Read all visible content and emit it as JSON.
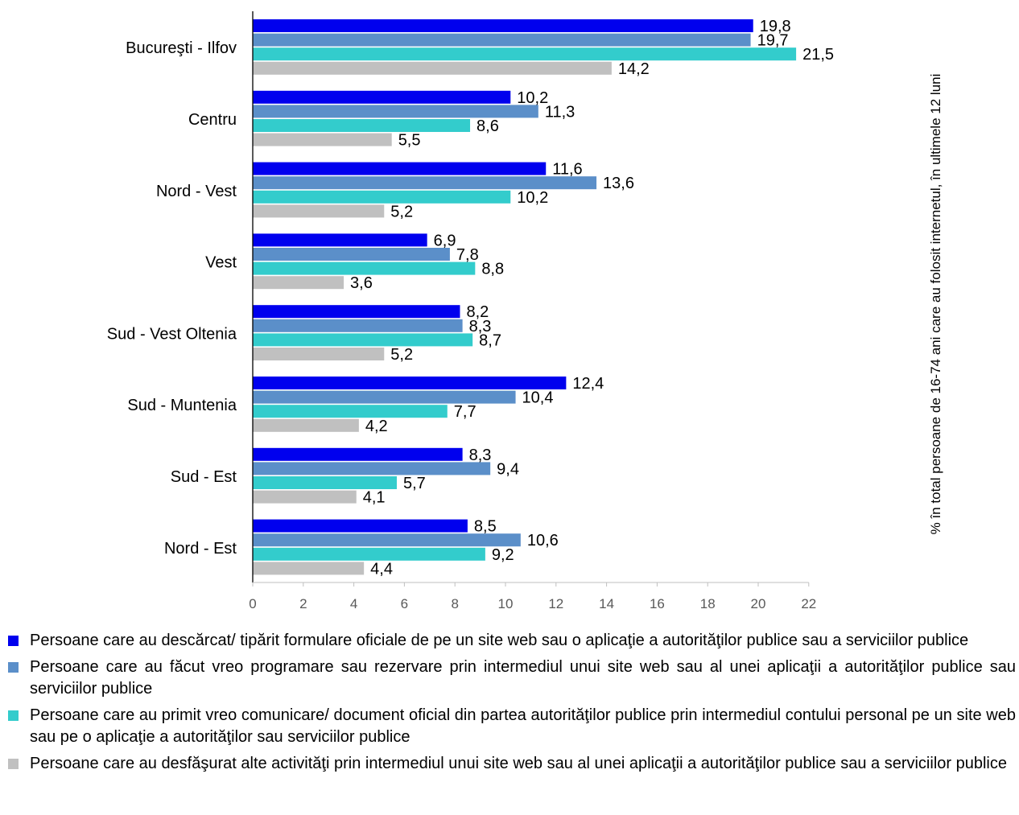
{
  "chart_data": {
    "type": "bar",
    "orientation": "horizontal",
    "categories": [
      "Bucureşti - Ilfov",
      "Centru",
      "Nord - Vest",
      "Vest",
      "Sud - Vest Oltenia",
      "Sud - Muntenia",
      "Sud - Est",
      "Nord - Est"
    ],
    "series": [
      {
        "name": "Persoane care au descărcat/ tipărit formulare oficiale de pe un site web sau o aplicaţie a autorităţilor publice sau a serviciilor publice",
        "color": "#0000ee",
        "values": [
          19.8,
          10.2,
          11.6,
          6.9,
          8.2,
          12.4,
          8.3,
          8.5
        ],
        "labels": [
          "19,8",
          "10,2",
          "11,6",
          "6,9",
          "8,2",
          "12,4",
          "8,3",
          "8,5"
        ]
      },
      {
        "name": "Persoane care au făcut vreo programare sau rezervare prin intermediul unui site web sau al unei aplicaţii a autorităţilor publice sau serviciilor publice",
        "color": "#5b8fc9",
        "values": [
          19.7,
          11.3,
          13.6,
          7.8,
          8.3,
          10.4,
          9.4,
          10.6
        ],
        "labels": [
          "19,7",
          "11,3",
          "13,6",
          "7,8",
          "8,3",
          "10,4",
          "9,4",
          "10,6"
        ]
      },
      {
        "name": "Persoane care au primit vreo comunicare/ document oficial din partea autorităţilor publice prin intermediul contului personal pe un site web sau pe o aplicaţie a autorităţilor sau serviciilor publice",
        "color": "#33cccc",
        "values": [
          21.5,
          8.6,
          10.2,
          8.8,
          8.7,
          7.7,
          5.7,
          9.2
        ],
        "labels": [
          "21,5",
          "8,6",
          "10,2",
          "8,8",
          "8,7",
          "7,7",
          "5,7",
          "9,2"
        ]
      },
      {
        "name": "Persoane care au desfăşurat alte activităţi prin intermediul unui site web sau al unei aplicaţii a autorităţilor publice sau a serviciilor publice",
        "color": "#c0c0c0",
        "values": [
          14.2,
          5.5,
          5.2,
          3.6,
          5.2,
          4.2,
          4.1,
          4.4
        ],
        "labels": [
          "14,2",
          "5,5",
          "5,2",
          "3,6",
          "5,2",
          "4,2",
          "4,1",
          "4,4"
        ]
      }
    ],
    "xlim": [
      0,
      22
    ],
    "xticks": [
      "0",
      "2",
      "4",
      "6",
      "8",
      "10",
      "12",
      "14",
      "16",
      "18",
      "20",
      "22"
    ],
    "ylabel": "% în total persoane de 16-74 ani care au folosit internetul, în ultimele 12 luni",
    "grid": false,
    "legend_position": "bottom"
  }
}
